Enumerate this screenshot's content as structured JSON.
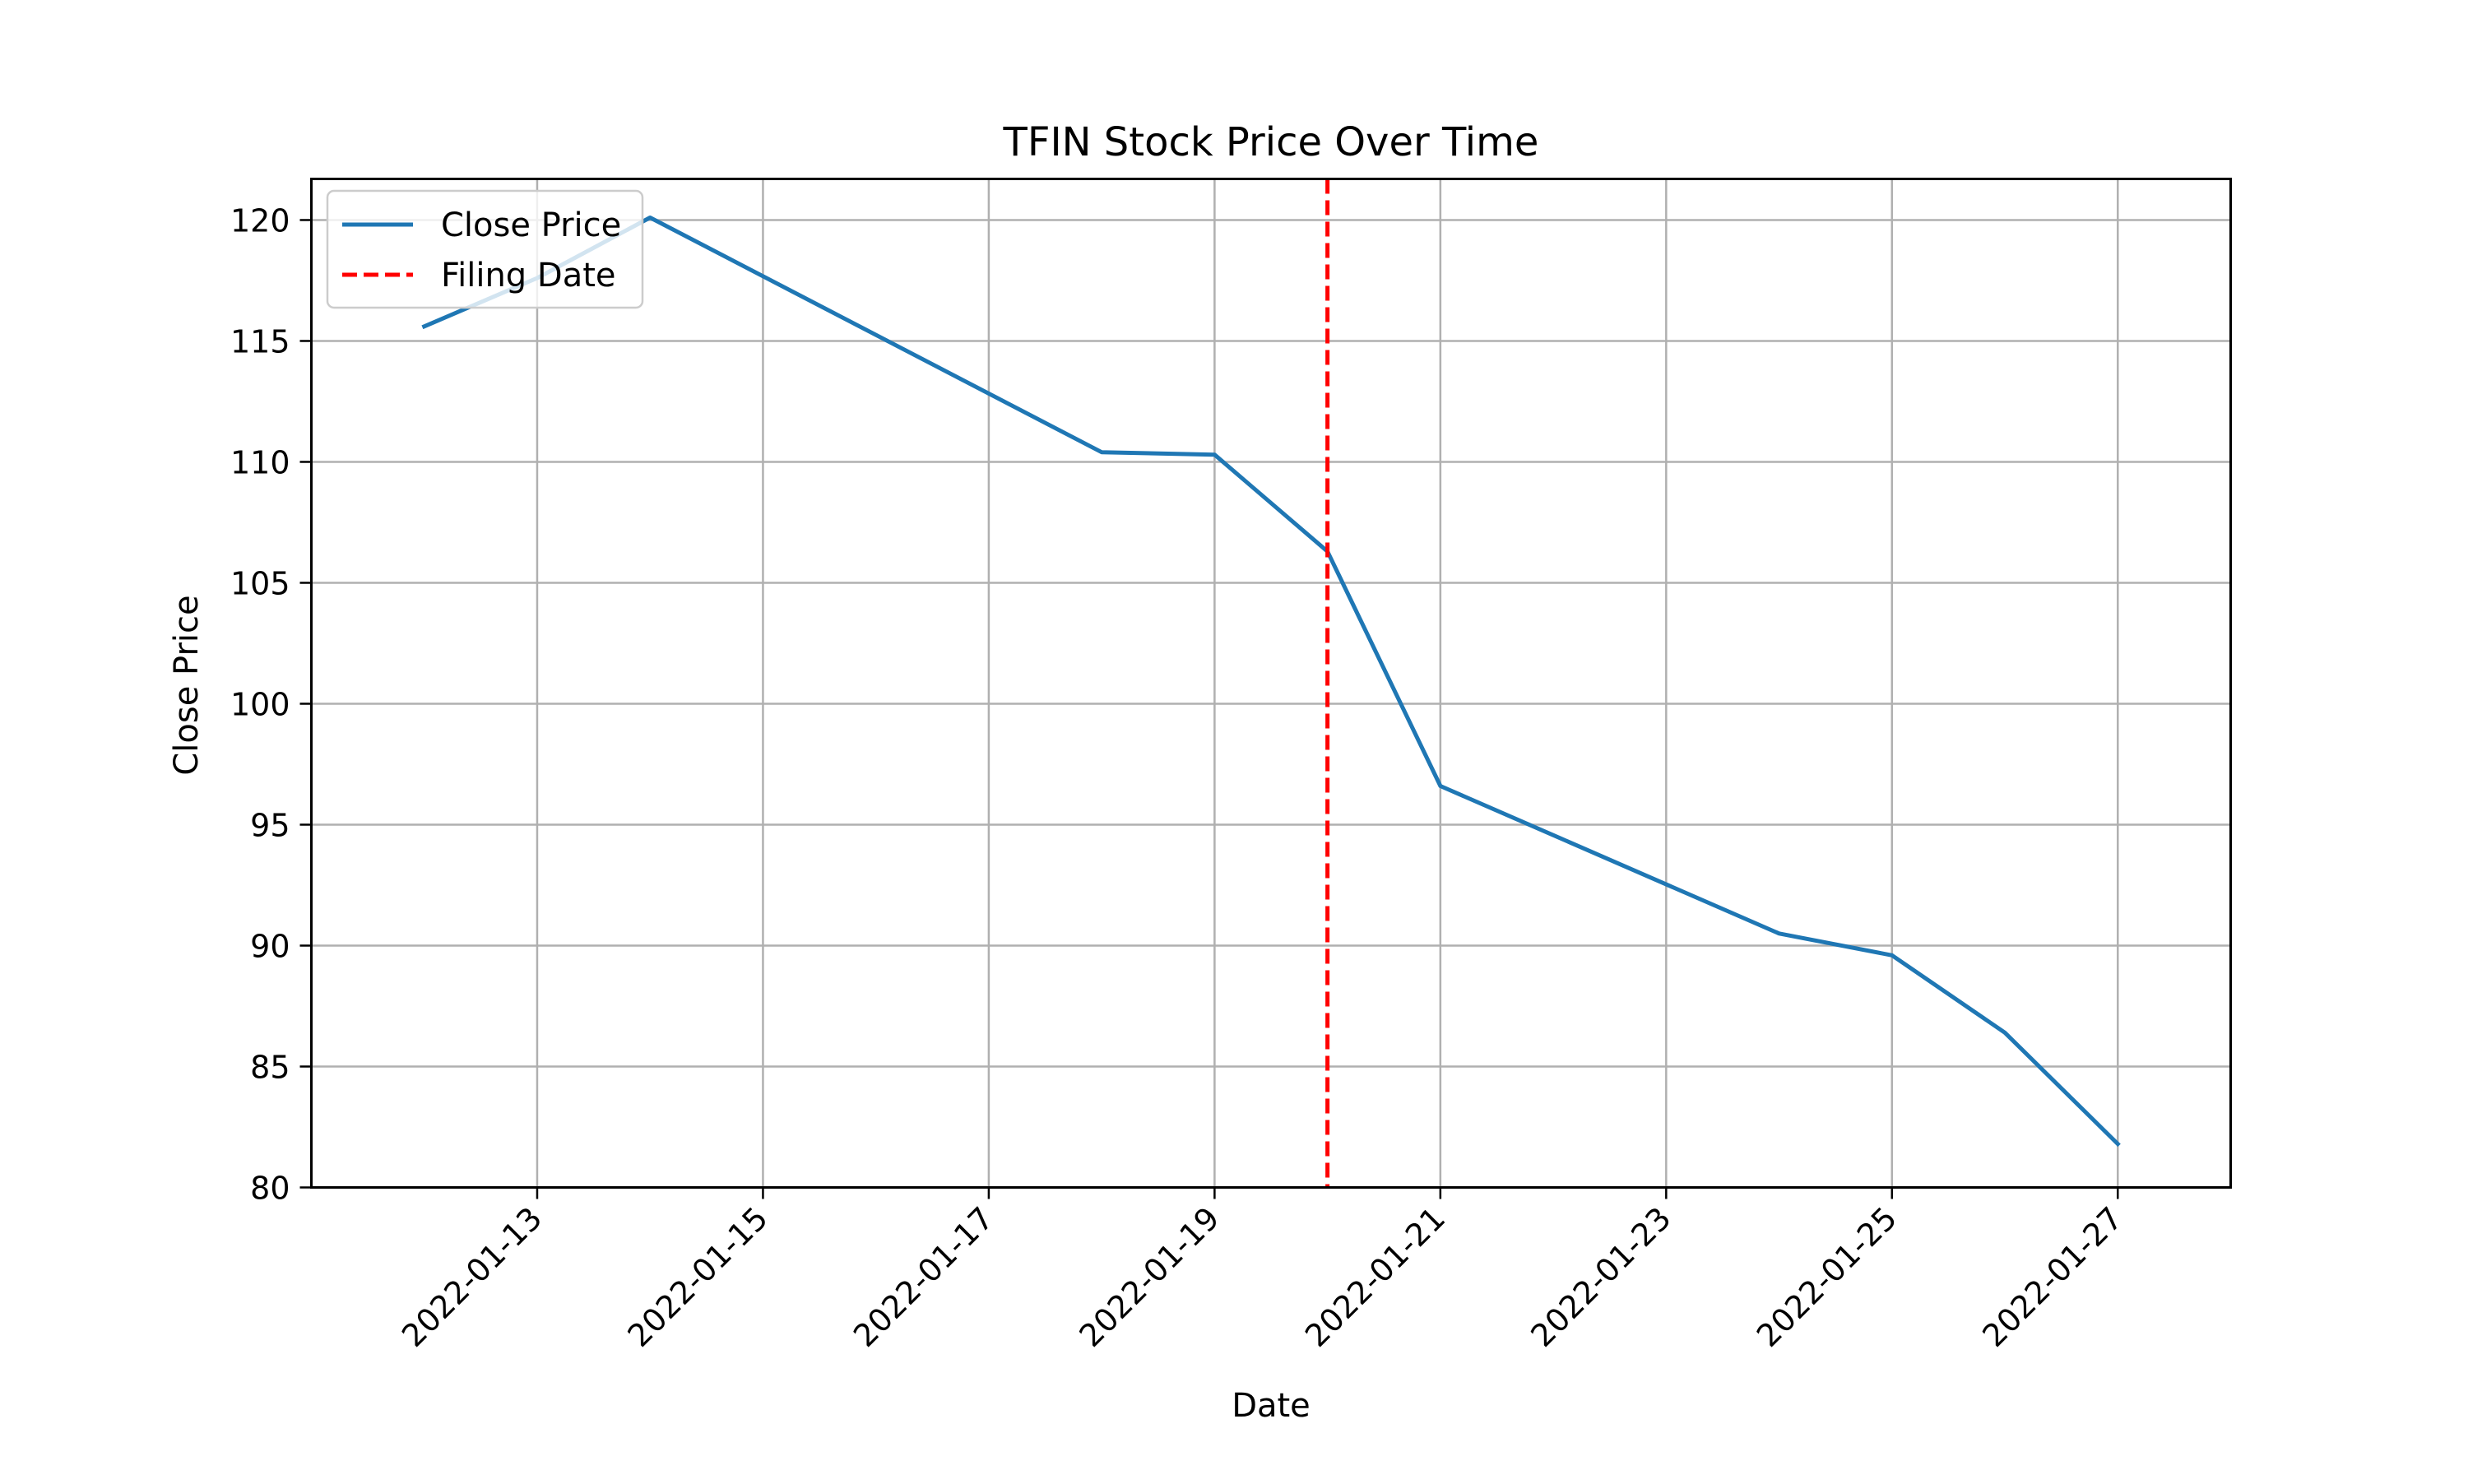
{
  "chart_data": {
    "type": "line",
    "title": "TFIN Stock Price Over Time",
    "xlabel": "Date",
    "ylabel": "Close Price",
    "xlim": [
      "2022-01-11",
      "2022-01-28"
    ],
    "ylim": [
      80,
      121.7
    ],
    "grid": true,
    "legend_position": "top-left",
    "x_ticks": [
      "2022-01-13",
      "2022-01-15",
      "2022-01-17",
      "2022-01-19",
      "2022-01-21",
      "2022-01-23",
      "2022-01-25",
      "2022-01-27"
    ],
    "y_ticks": [
      80,
      85,
      90,
      95,
      100,
      105,
      110,
      115,
      120
    ],
    "series": [
      {
        "name": "Close Price",
        "color": "#1f77b4",
        "style": "solid",
        "x": [
          "2022-01-12",
          "2022-01-13",
          "2022-01-14",
          "2022-01-18",
          "2022-01-19",
          "2022-01-20",
          "2022-01-21",
          "2022-01-24",
          "2022-01-25",
          "2022-01-26",
          "2022-01-27"
        ],
        "y": [
          115.6,
          117.6,
          120.1,
          110.4,
          110.3,
          106.3,
          96.6,
          90.5,
          89.6,
          86.4,
          81.8
        ]
      }
    ],
    "vlines": [
      {
        "name": "Filing Date",
        "x": "2022-01-20",
        "color": "#ff0000",
        "style": "dashed"
      }
    ]
  }
}
